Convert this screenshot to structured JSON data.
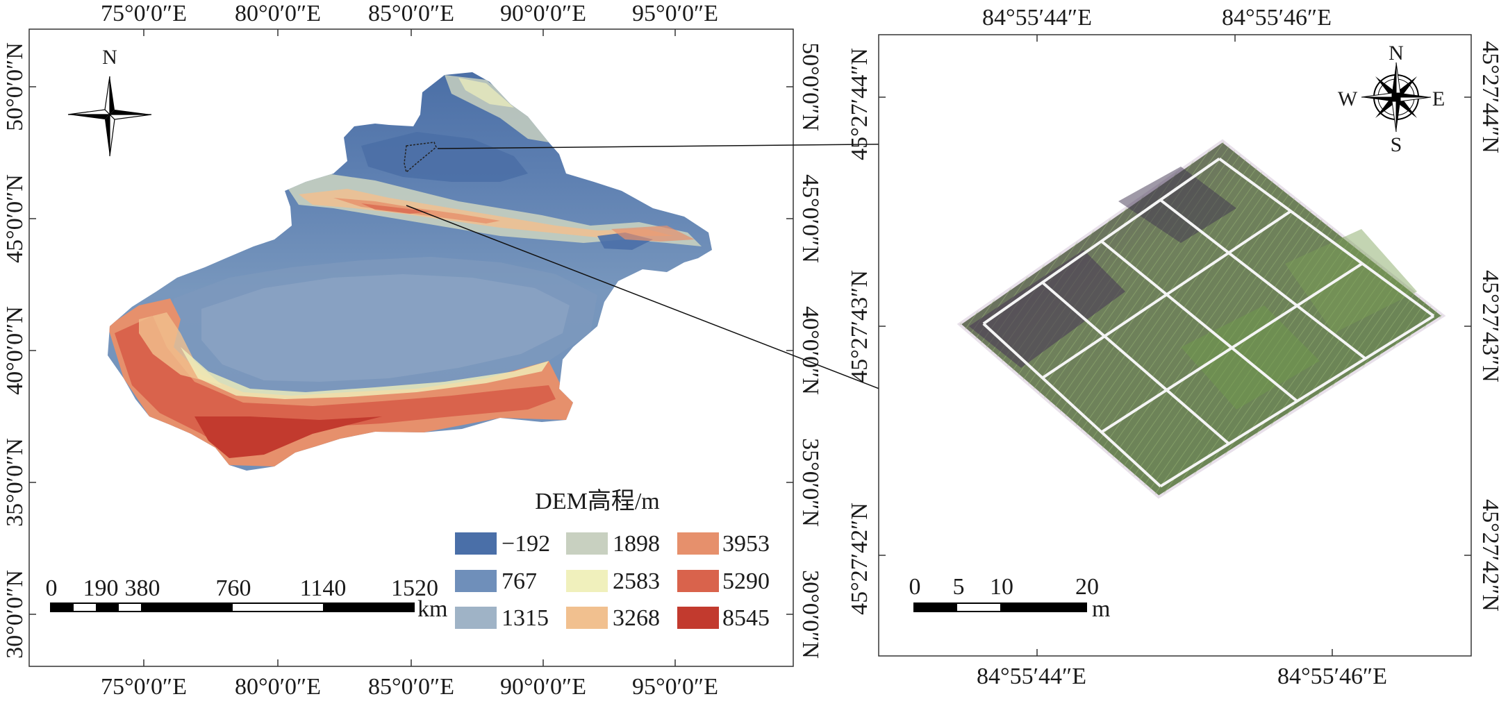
{
  "left_map": {
    "top_lon_labels": [
      "75°0′0″E",
      "80°0′0″E",
      "85°0′0″E",
      "90°0′0″E",
      "95°0′0″E"
    ],
    "bottom_lon_labels": [
      "75°0′0″E",
      "80°0′0″E",
      "85°0′0″E",
      "90°0′0″E",
      "95°0′0″E"
    ],
    "left_lat_labels": [
      "50°0′0″N",
      "45°0′0″N",
      "40°0′0″N",
      "35°0′0″N",
      "30°0′0″N"
    ],
    "right_lat_labels": [
      "50°0′0″N",
      "45°0′0″N",
      "40°0′0″N",
      "35°0′0″N",
      "30°0′0″N"
    ],
    "north_arrow_label": "N",
    "legend": {
      "title": "DEM高程/m",
      "items": [
        {
          "label": "−192",
          "color": "#4a6fa8"
        },
        {
          "label": "767",
          "color": "#6f8fba"
        },
        {
          "label": "1315",
          "color": "#9fb3c6"
        },
        {
          "label": "1898",
          "color": "#c8d0c0"
        },
        {
          "label": "2583",
          "color": "#f0f0bc"
        },
        {
          "label": "3268",
          "color": "#f1c08f"
        },
        {
          "label": "3953",
          "color": "#e6906c"
        },
        {
          "label": "5290",
          "color": "#d9634c"
        },
        {
          "label": "8545",
          "color": "#c23a2e"
        }
      ]
    },
    "scale_bar": {
      "ticks": [
        "0",
        "190",
        "380",
        "760",
        "1140",
        "1520"
      ],
      "unit": "km"
    }
  },
  "right_map": {
    "top_lon_labels": [
      "84°55′44″E",
      "84°55′46″E"
    ],
    "bottom_lon_labels": [
      "84°55′44″E",
      "84°55′46″E"
    ],
    "left_lat_labels": [
      "45°27′44″N",
      "45°27′43″N",
      "45°27′42″N"
    ],
    "right_lat_labels": [
      "45°27′44″N",
      "45°27′43″N",
      "45°27′42″N"
    ],
    "compass": {
      "n": "N",
      "s": "S",
      "e": "E",
      "w": "W"
    },
    "scale_bar": {
      "ticks": [
        "0",
        "5",
        "10",
        "20"
      ],
      "unit": "m"
    },
    "plot_grid": {
      "rows": 3,
      "cols": 4
    }
  }
}
